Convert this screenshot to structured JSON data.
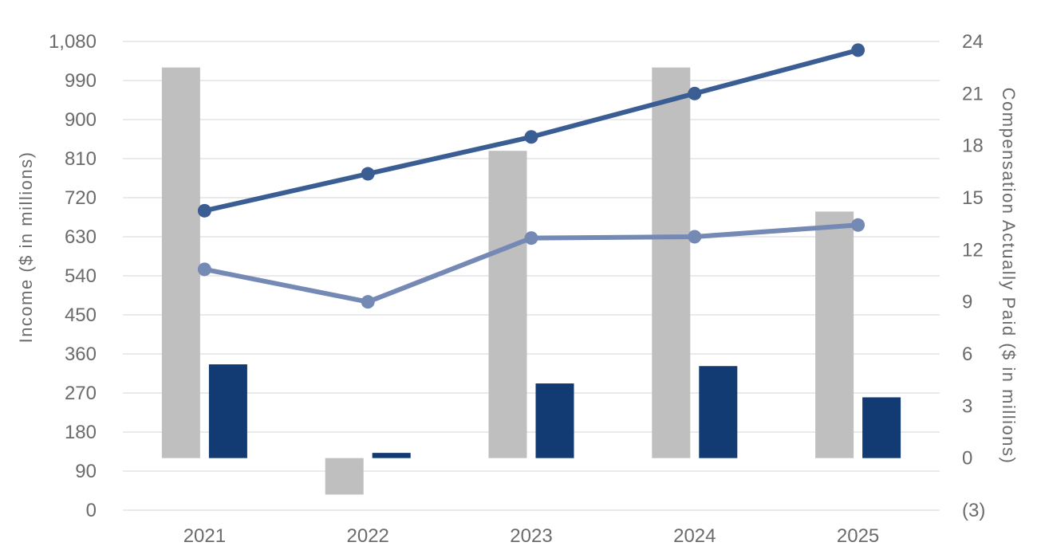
{
  "chart_data": {
    "type": "combo_bar_line",
    "title": "",
    "legend": "none",
    "grid": "horizontal",
    "categories": [
      "2021",
      "2022",
      "2023",
      "2024",
      "2025"
    ],
    "x_axis": {
      "ticks": [
        "2021",
        "2022",
        "2023",
        "2024",
        "2025"
      ]
    },
    "left_axis": {
      "label": "Income ($ in millions)",
      "min": 0,
      "max": 1080,
      "ticks_bottom_to_top": [
        "0",
        "90",
        "180",
        "270",
        "360",
        "450",
        "540",
        "630",
        "720",
        "810",
        "900",
        "990",
        "1,080"
      ]
    },
    "right_axis": {
      "label": "Compensation Actually Paid ($ in millions)",
      "min": -3,
      "max": 24,
      "ticks_bottom_to_top": [
        "(3)",
        "0",
        "3",
        "6",
        "9",
        "12",
        "15",
        "18",
        "21",
        "24"
      ]
    },
    "series": [
      {
        "key": "gray_bars",
        "name": "Gray bars (right axis)",
        "type": "bar",
        "axis": "right",
        "color": "#bfbfbf",
        "values": [
          22.5,
          -2.1,
          17.7,
          22.5,
          14.2
        ]
      },
      {
        "key": "navy_bars",
        "name": "Navy bars (right axis)",
        "type": "bar",
        "axis": "right",
        "color": "#123a73",
        "values": [
          5.4,
          0.3,
          4.3,
          5.3,
          3.5
        ]
      },
      {
        "key": "light_line",
        "name": "Light blue line (left axis)",
        "type": "line",
        "axis": "left",
        "color": "#7589b5",
        "values": [
          555,
          480,
          627,
          630,
          657
        ]
      },
      {
        "key": "dark_line",
        "name": "Dark blue line (left axis)",
        "type": "line",
        "axis": "left",
        "color": "#3a5e94",
        "values": [
          690,
          775,
          860,
          960,
          1060
        ]
      }
    ]
  },
  "colors": {
    "gray_bar": "#bfbfbf",
    "navy_bar": "#123a73",
    "dark_line": "#3a5e94",
    "light_line": "#7589b5",
    "gridline": "#e3e3e5",
    "text": "#6b6b6b"
  }
}
